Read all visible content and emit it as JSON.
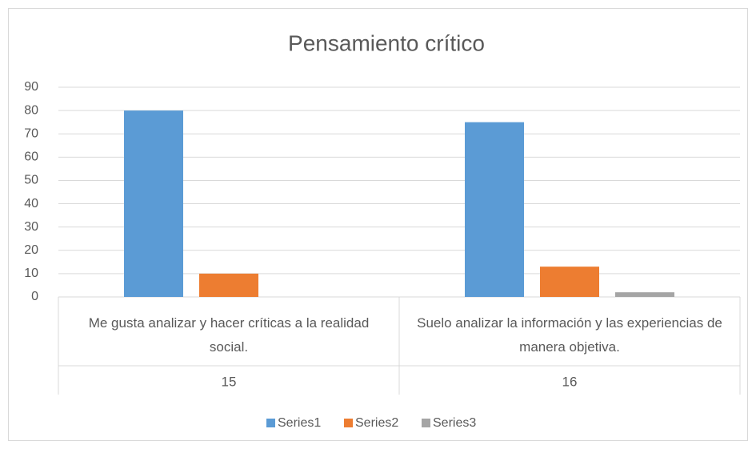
{
  "chart_data": {
    "type": "bar",
    "title": "Pensamiento crítico",
    "categories": [
      "Me gusta analizar y hacer críticas a la realidad social.",
      "Suelo analizar la información y las experiencias de manera objetiva."
    ],
    "outer_categories": [
      "15",
      "16"
    ],
    "series": [
      {
        "name": "Series1",
        "color": "#5b9bd5",
        "values": [
          80,
          75
        ]
      },
      {
        "name": "Series2",
        "color": "#ed7d31",
        "values": [
          10,
          13
        ]
      },
      {
        "name": "Series3",
        "color": "#a5a5a5",
        "values": [
          0,
          2
        ]
      }
    ],
    "ylim": [
      0,
      90
    ],
    "yticks": [
      0,
      10,
      20,
      30,
      40,
      50,
      60,
      70,
      80,
      90
    ],
    "grid": true,
    "legend": "bottom"
  }
}
